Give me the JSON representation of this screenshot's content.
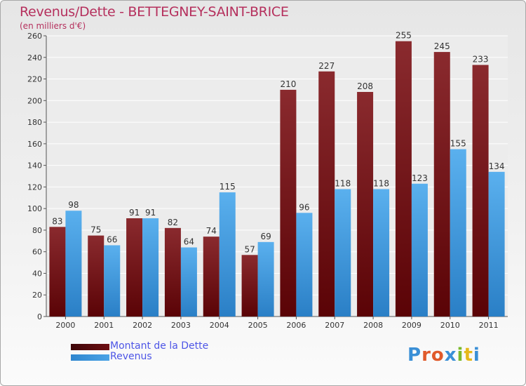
{
  "header": {
    "title": "Revenus/Dette - BETTEGNEY-SAINT-BRICE",
    "subtitle": "(en milliers d'€)"
  },
  "colors": {
    "debt": "#7a1a1e",
    "revenue": "#4aa3e6",
    "title": "#b5305d",
    "legend_text": "#4d55e6"
  },
  "legend": [
    {
      "label": "Montant de la Dette",
      "color": "#6e0e12"
    },
    {
      "label": "Revenus",
      "color": "#4aa3e6"
    }
  ],
  "logo": {
    "text": "Proxiti",
    "letter_colors": [
      "#3a8fd6",
      "#e0592a",
      "#e0592a",
      "#3a8fd6",
      "#7ab92a",
      "#e6b81a",
      "#3a8fd6"
    ]
  },
  "chart_data": {
    "type": "bar",
    "categories": [
      "2000",
      "2001",
      "2002",
      "2003",
      "2004",
      "2005",
      "2006",
      "2007",
      "2008",
      "2009",
      "2010",
      "2011"
    ],
    "series": [
      {
        "name": "Montant de la Dette",
        "values": [
          83,
          75,
          91,
          82,
          74,
          57,
          210,
          227,
          208,
          255,
          245,
          233
        ]
      },
      {
        "name": "Revenus",
        "values": [
          98,
          66,
          91,
          64,
          115,
          69,
          96,
          118,
          118,
          123,
          155,
          134
        ]
      }
    ],
    "ylim": [
      0,
      260
    ],
    "yticks": [
      0,
      20,
      40,
      60,
      80,
      100,
      120,
      140,
      160,
      180,
      200,
      220,
      240,
      260
    ],
    "grid": true,
    "legend_position": "bottom-left"
  }
}
